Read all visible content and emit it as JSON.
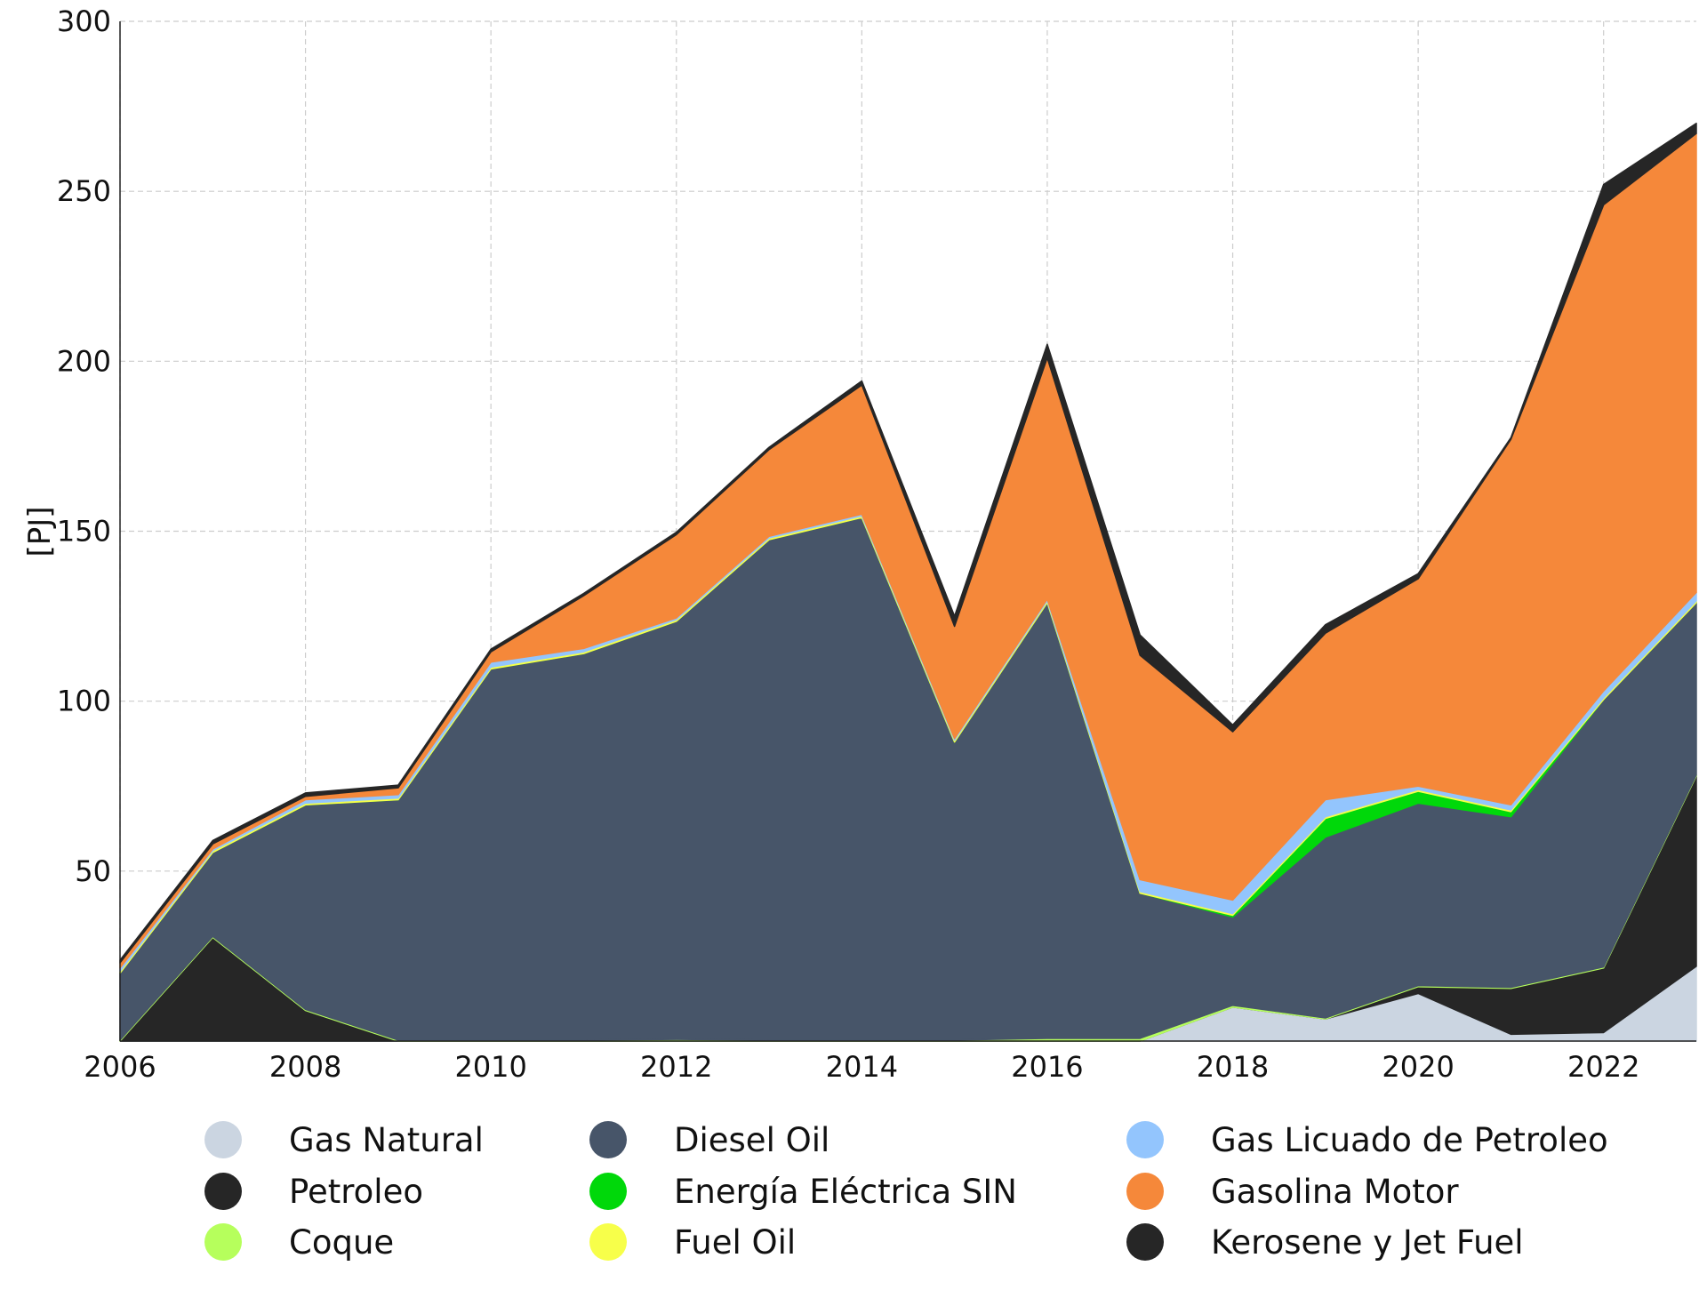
{
  "chart_data": {
    "type": "area",
    "stacked": true,
    "title": "",
    "xlabel": "",
    "ylabel": "[PJ]",
    "xlim": [
      2006,
      2023
    ],
    "ylim": [
      0,
      300
    ],
    "x_ticks": [
      2006,
      2008,
      2010,
      2012,
      2014,
      2016,
      2018,
      2020,
      2022
    ],
    "y_ticks": [
      50,
      100,
      150,
      200,
      250,
      300
    ],
    "grid": true,
    "legend_placement": "bottom",
    "x": [
      2006,
      2007,
      2008,
      2009,
      2010,
      2011,
      2012,
      2013,
      2014,
      2015,
      2016,
      2017,
      2018,
      2019,
      2020,
      2021,
      2022,
      2023
    ],
    "series": [
      {
        "name": "Gas Natural",
        "color": "#cbd5e1",
        "values": [
          0,
          0,
          0,
          0,
          0,
          0,
          0,
          0,
          0,
          0,
          0,
          0,
          10,
          6.5,
          14,
          2,
          2.5,
          22
        ]
      },
      {
        "name": "Petroleo",
        "color": "#262626",
        "values": [
          0,
          30.5,
          9,
          0,
          0,
          0,
          0,
          0,
          0,
          0,
          0,
          0,
          0,
          0,
          2,
          13.5,
          19,
          56
        ]
      },
      {
        "name": "Coque",
        "color": "#b6ff5c",
        "values": [
          0.3,
          0.3,
          0.3,
          0.3,
          0.3,
          0.3,
          0.5,
          0.3,
          0.3,
          0.3,
          0.8,
          0.8,
          0.5,
          0.3,
          0.3,
          0.3,
          0.3,
          0.3
        ]
      },
      {
        "name": "Diesel Oil",
        "color": "#475569",
        "values": [
          19.7,
          24.7,
          60.2,
          70.7,
          109.2,
          113.7,
          123,
          147.2,
          153.7,
          87.7,
          128.2,
          42.7,
          26,
          53.2,
          53.7,
          50.2,
          78.7,
          50.7
        ]
      },
      {
        "name": "Energía Eléctrica SIN",
        "color": "#00d80a",
        "values": [
          0,
          0,
          0,
          0,
          0,
          0,
          0,
          0,
          0,
          0,
          0,
          0,
          0.5,
          5.5,
          3.5,
          1.5,
          0,
          0
        ]
      },
      {
        "name": "Fuel Oil",
        "color": "#f7ff4a",
        "values": [
          0.5,
          0.5,
          0.5,
          0.5,
          0.5,
          0.5,
          0.5,
          0.5,
          0.5,
          0.5,
          0.5,
          0.5,
          0.5,
          0.5,
          0.5,
          0.5,
          0.5,
          0.5
        ]
      },
      {
        "name": "Gas Licuado de Petroleo",
        "color": "#93c5fd",
        "values": [
          1,
          0.5,
          1,
          1,
          1.5,
          1,
          0.5,
          0.5,
          0.5,
          0.5,
          0.5,
          3.5,
          4,
          5,
          1,
          1.5,
          2,
          2.5
        ]
      },
      {
        "name": "Gasolina Motor",
        "color": "#f5883a",
        "values": [
          1.5,
          1.5,
          1,
          2,
          3,
          15.5,
          24.5,
          25.5,
          38,
          33,
          71,
          66,
          49.5,
          49,
          61,
          107.5,
          143,
          135
        ]
      },
      {
        "name": "Kerosene y Jet Fuel",
        "color": "#262626",
        "values": [
          0.8,
          1,
          1,
          0.8,
          0.8,
          0.7,
          0.7,
          0.7,
          1.2,
          3,
          4,
          6,
          2,
          2.5,
          1.5,
          0.5,
          6,
          3
        ]
      }
    ]
  }
}
